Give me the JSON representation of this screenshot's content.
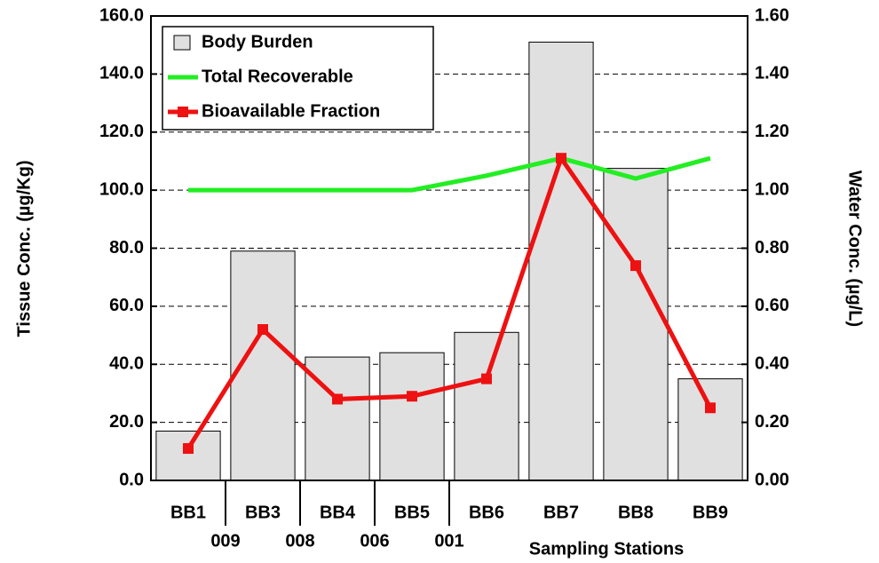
{
  "chart_data": {
    "type": "bar-line",
    "categories": [
      "BB1",
      "BB3",
      "BB4",
      "BB5",
      "BB6",
      "BB7",
      "BB8",
      "BB9"
    ],
    "station_codes": [
      "009",
      "008",
      "006",
      "001"
    ],
    "xlabel": "Sampling Stations",
    "ylabel": "Tissue Conc. (µg/Kg)",
    "y2label": "Water Conc. (µg/L)",
    "series": [
      {
        "name": "Body Burden",
        "type": "bar",
        "axis": "y",
        "color": "#e0e0e0",
        "values": [
          17,
          79,
          42.5,
          44,
          51,
          151,
          107.5,
          35
        ]
      },
      {
        "name": "Total Recoverable",
        "type": "line",
        "axis": "y2",
        "color": "#22ee22",
        "values": [
          1.0,
          1.0,
          1.0,
          1.0,
          1.05,
          1.11,
          1.04,
          1.11
        ]
      },
      {
        "name": "Bioavailable Fraction",
        "type": "line",
        "axis": "y2",
        "color": "#ee1111",
        "marker": "square",
        "values": [
          0.11,
          0.52,
          0.28,
          0.29,
          0.35,
          1.11,
          0.74,
          0.25
        ]
      }
    ],
    "ylim": [
      0,
      160
    ],
    "yticks": [
      {
        "value": 0,
        "label": "0.0"
      },
      {
        "value": 20,
        "label": "20.0"
      },
      {
        "value": 40,
        "label": "40.0"
      },
      {
        "value": 60,
        "label": "60.0"
      },
      {
        "value": 80,
        "label": "80.0"
      },
      {
        "value": 100,
        "label": "100.0"
      },
      {
        "value": 120,
        "label": "120.0"
      },
      {
        "value": 140,
        "label": "140.0"
      },
      {
        "value": 160,
        "label": "160.0"
      }
    ],
    "y2lim": [
      0,
      1.6
    ],
    "y2ticks": [
      {
        "value": 0,
        "label": "0.00"
      },
      {
        "value": 0.2,
        "label": "0.20"
      },
      {
        "value": 0.4,
        "label": "0.40"
      },
      {
        "value": 0.6,
        "label": "0.60"
      },
      {
        "value": 0.8,
        "label": "0.80"
      },
      {
        "value": 1.0,
        "label": "1.00"
      },
      {
        "value": 1.2,
        "label": "1.20"
      },
      {
        "value": 1.4,
        "label": "1.40"
      },
      {
        "value": 1.6,
        "label": "1.60"
      }
    ],
    "grid": true,
    "legend": "upper left"
  }
}
